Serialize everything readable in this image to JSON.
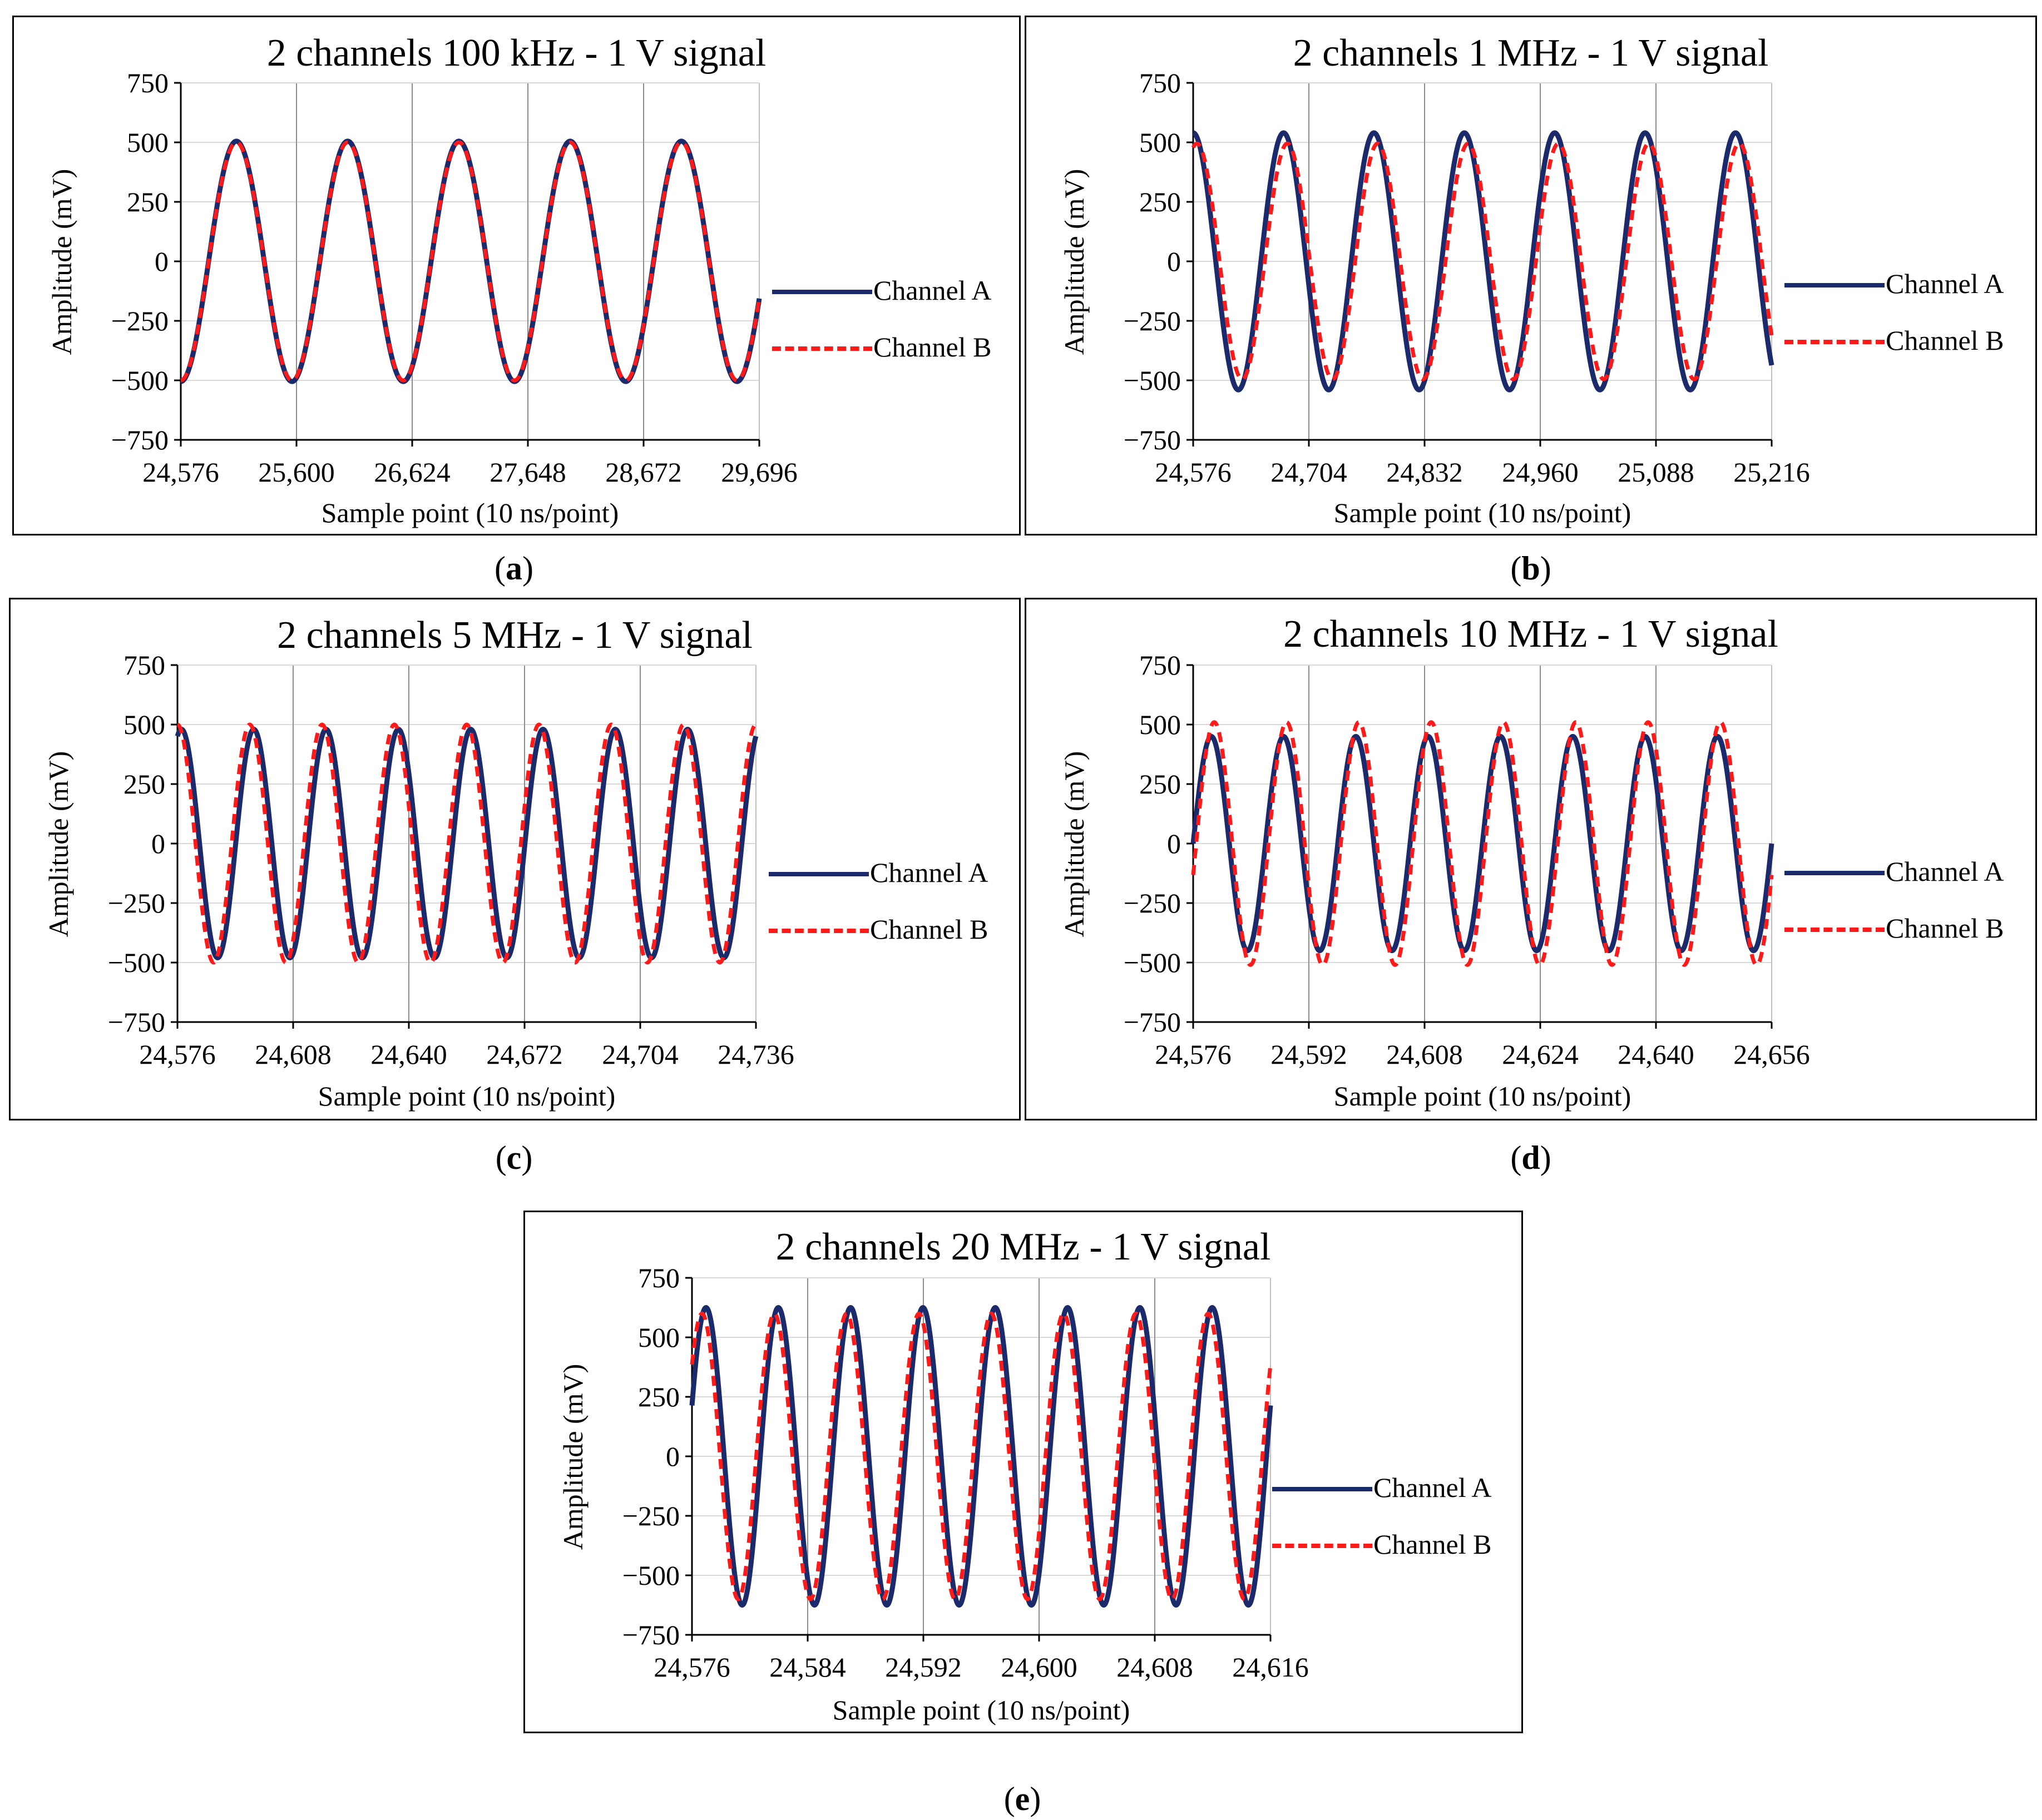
{
  "chart_data": [
    {
      "type": "line",
      "caption": "a",
      "title": "2 channels 100 kHz - 1 V signal",
      "xlabel": "Sample point (10 ns/point)",
      "ylabel": "Amplitude (mV)",
      "xlim": [
        24576,
        29696
      ],
      "ylim": [
        -750,
        750
      ],
      "x_ticks": [
        "24,576",
        "25,600",
        "26,624",
        "27,648",
        "28,672",
        "29,696"
      ],
      "y_ticks": [
        "750",
        "500",
        "250",
        "0",
        "−250",
        "−500",
        "−750"
      ],
      "grid": "vertical",
      "legend_position": "right",
      "series": [
        {
          "name": "Channel A",
          "color": "#1b2a6b",
          "style": "solid",
          "amplitude": 505,
          "cycles": 5.2,
          "start_phase_deg": 270
        },
        {
          "name": "Channel B",
          "color": "#ff1a1a",
          "style": "dashed",
          "amplitude": 500,
          "cycles": 5.2,
          "start_phase_deg": 270
        }
      ]
    },
    {
      "type": "line",
      "caption": "b",
      "title": "2 channels 1 MHz - 1 V signal",
      "xlabel": "Sample point (10 ns/point)",
      "ylabel": "Amplitude (mV)",
      "xlim": [
        24576,
        25216
      ],
      "ylim": [
        -750,
        750
      ],
      "x_ticks": [
        "24,576",
        "24,704",
        "24,832",
        "24,960",
        "25,088",
        "25,216"
      ],
      "y_ticks": [
        "750",
        "500",
        "250",
        "0",
        "−250",
        "−500",
        "−750"
      ],
      "grid": "vertical",
      "legend_position": "right",
      "series": [
        {
          "name": "Channel A",
          "color": "#1b2a6b",
          "style": "solid",
          "amplitude": 540,
          "cycles": 6.4,
          "start_phase_deg": 90
        },
        {
          "name": "Channel B",
          "color": "#ff1a1a",
          "style": "dashed",
          "amplitude": 495,
          "cycles": 6.4,
          "start_phase_deg": 75
        }
      ]
    },
    {
      "type": "line",
      "caption": "c",
      "title": "2 channels 5 MHz - 1 V signal",
      "xlabel": "Sample point (10 ns/point)",
      "ylabel": "Amplitude (mV)",
      "xlim": [
        24576,
        24736
      ],
      "ylim": [
        -750,
        750
      ],
      "x_ticks": [
        "24,576",
        "24,608",
        "24,640",
        "24,672",
        "24,704",
        "24,736"
      ],
      "y_ticks": [
        "750",
        "500",
        "250",
        "0",
        "−250",
        "−500",
        "−750"
      ],
      "grid": "vertical",
      "legend_position": "right",
      "series": [
        {
          "name": "Channel A",
          "color": "#1b2a6b",
          "style": "solid",
          "amplitude": 480,
          "cycles": 8,
          "start_phase_deg": 70
        },
        {
          "name": "Channel B",
          "color": "#ff1a1a",
          "style": "dashed",
          "amplitude": 500,
          "cycles": 8,
          "start_phase_deg": 90
        }
      ]
    },
    {
      "type": "line",
      "caption": "d",
      "title": "2 channels 10 MHz - 1 V signal",
      "xlabel": "Sample point (10 ns/point)",
      "ylabel": "Amplitude (mV)",
      "xlim": [
        24576,
        24656
      ],
      "ylim": [
        -750,
        750
      ],
      "x_ticks": [
        "24,576",
        "24,592",
        "24,608",
        "24,624",
        "24,640",
        "24,656"
      ],
      "y_ticks": [
        "750",
        "500",
        "250",
        "0",
        "−250",
        "−500",
        "−750"
      ],
      "grid": "vertical",
      "legend_position": "right",
      "series": [
        {
          "name": "Channel A",
          "color": "#1b2a6b",
          "style": "solid",
          "amplitude": 450,
          "cycles": 8,
          "start_phase_deg": 0
        },
        {
          "name": "Channel B",
          "color": "#ff1a1a",
          "style": "dashed",
          "amplitude": 510,
          "cycles": 8,
          "start_phase_deg": 345
        }
      ]
    },
    {
      "type": "line",
      "caption": "e",
      "title": "2 channels 20 MHz - 1 V signal",
      "xlabel": "Sample point (10 ns/point)",
      "ylabel": "Amplitude (mV)",
      "xlim": [
        24576,
        24616
      ],
      "ylim": [
        -750,
        750
      ],
      "x_ticks": [
        "24,576",
        "24,584",
        "24,592",
        "24,600",
        "24,608",
        "24,616"
      ],
      "y_ticks": [
        "750",
        "500",
        "250",
        "0",
        "−250",
        "−500",
        "−750"
      ],
      "grid": "vertical",
      "legend_position": "right",
      "series": [
        {
          "name": "Channel A",
          "color": "#1b2a6b",
          "style": "solid",
          "amplitude": 625,
          "cycles": 8,
          "start_phase_deg": 20
        },
        {
          "name": "Channel B",
          "color": "#ff1a1a",
          "style": "dashed",
          "amplitude": 600,
          "cycles": 8,
          "start_phase_deg": 40
        }
      ]
    }
  ]
}
